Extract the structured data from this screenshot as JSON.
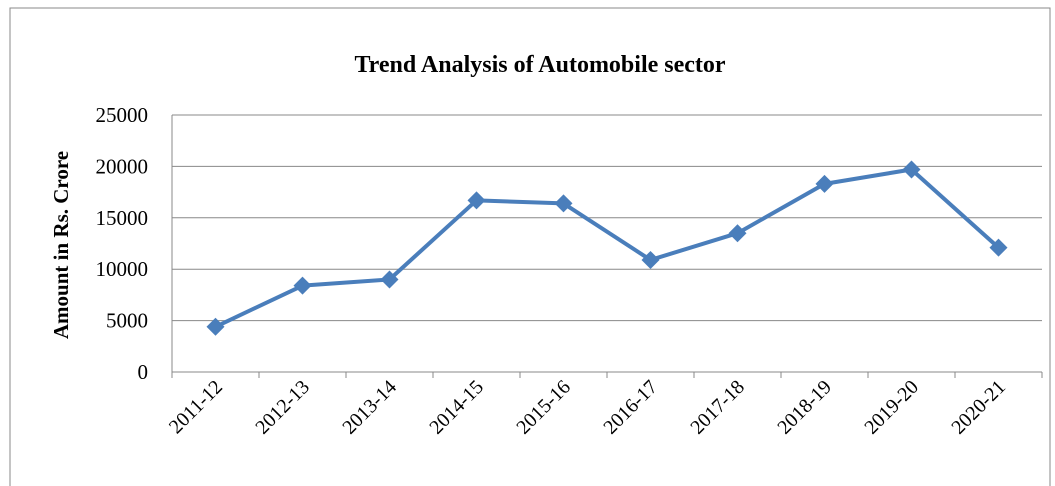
{
  "chart_data": {
    "type": "line",
    "title": "Trend Analysis of Automobile sector",
    "y_label": "Amount in Rs. Crore",
    "categories": [
      "2011-12",
      "2012-13",
      "2013-14",
      "2014-15",
      "2015-16",
      "2016-17",
      "2017-18",
      "2018-19",
      "2019-20",
      "2020-21"
    ],
    "series": [
      {
        "name": "Amount",
        "color": "#4a7ebb",
        "values": [
          4400,
          8400,
          9000,
          16700,
          16400,
          10900,
          13500,
          18300,
          19700,
          12100
        ]
      }
    ],
    "ylim": [
      0,
      25000
    ],
    "yticks": [
      0,
      5000,
      10000,
      15000,
      20000,
      25000
    ],
    "grid": true
  }
}
